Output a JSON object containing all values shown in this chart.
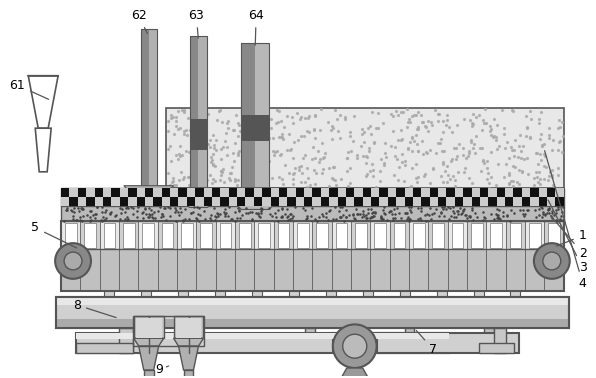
{
  "bg_color": "#ffffff",
  "line_color": "#555555",
  "dark_color": "#333333",
  "light_gray": "#d8d8d8",
  "mid_gray": "#aaaaaa",
  "dark_gray": "#777777",
  "figsize": [
    5.96,
    3.78
  ],
  "dpi": 100
}
